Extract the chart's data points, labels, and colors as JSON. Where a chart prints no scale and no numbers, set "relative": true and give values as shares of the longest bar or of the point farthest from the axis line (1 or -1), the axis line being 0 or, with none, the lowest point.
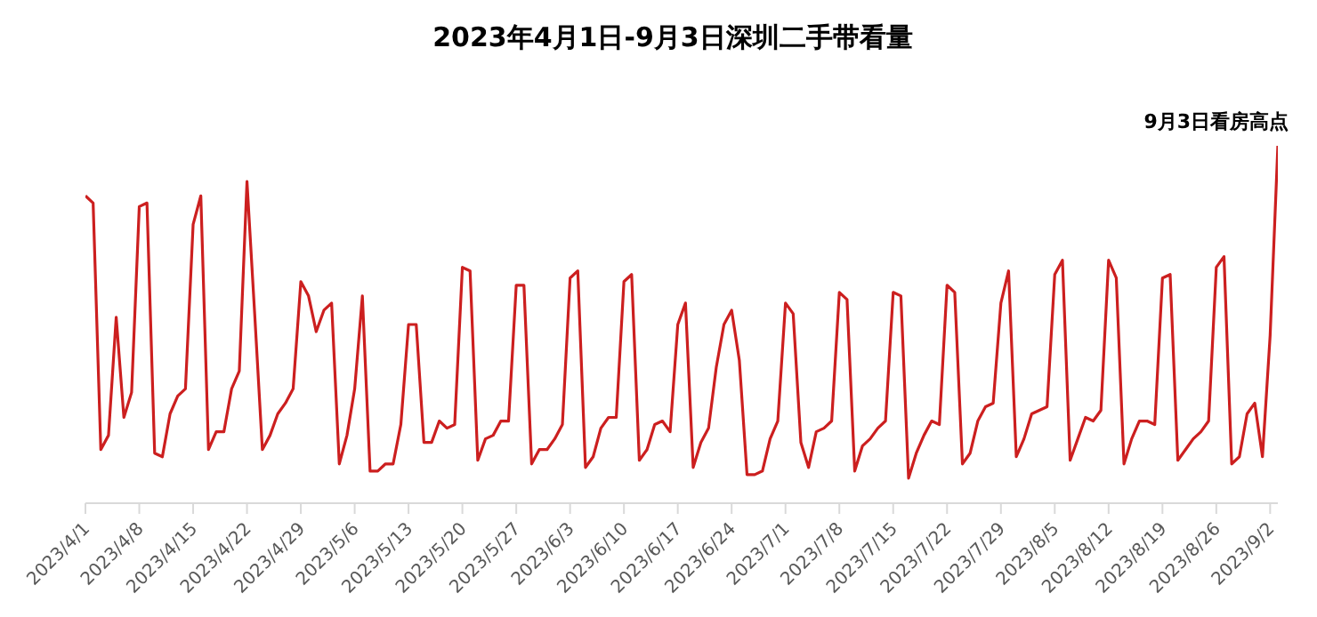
{
  "chart_data": {
    "type": "line",
    "title": "2023年4月1日-9月3日深圳二手带看量",
    "relative": true,
    "categories": [
      "2023/4/1",
      null,
      null,
      null,
      null,
      null,
      null,
      "2023/4/8",
      null,
      null,
      null,
      null,
      null,
      null,
      "2023/4/15",
      null,
      null,
      null,
      null,
      null,
      null,
      "2023/4/22",
      null,
      null,
      null,
      null,
      null,
      null,
      "2023/4/29",
      null,
      null,
      null,
      null,
      null,
      null,
      "2023/5/6",
      null,
      null,
      null,
      null,
      null,
      null,
      "2023/5/13",
      null,
      null,
      null,
      null,
      null,
      null,
      "2023/5/20",
      null,
      null,
      null,
      null,
      null,
      null,
      "2023/5/27",
      null,
      null,
      null,
      null,
      null,
      null,
      "2023/6/3",
      null,
      null,
      null,
      null,
      null,
      null,
      "2023/6/10",
      null,
      null,
      null,
      null,
      null,
      null,
      "2023/6/17",
      null,
      null,
      null,
      null,
      null,
      null,
      "2023/6/24",
      null,
      null,
      null,
      null,
      null,
      null,
      "2023/7/1",
      null,
      null,
      null,
      null,
      null,
      null,
      "2023/7/8",
      null,
      null,
      null,
      null,
      null,
      null,
      "2023/7/15",
      null,
      null,
      null,
      null,
      null,
      null,
      "2023/7/22",
      null,
      null,
      null,
      null,
      null,
      null,
      "2023/7/29",
      null,
      null,
      null,
      null,
      null,
      null,
      "2023/8/5",
      null,
      null,
      null,
      null,
      null,
      null,
      "2023/8/12",
      null,
      null,
      null,
      null,
      null,
      null,
      "2023/8/19",
      null,
      null,
      null,
      null,
      null,
      null,
      "2023/8/26",
      null,
      null,
      null,
      null,
      null,
      null,
      "2023/9/2",
      null
    ],
    "series": [
      {
        "color": "#cc1f1f",
        "values": [
          0.86,
          0.84,
          0.15,
          0.19,
          0.52,
          0.24,
          0.31,
          0.83,
          0.84,
          0.14,
          0.13,
          0.25,
          0.3,
          0.32,
          0.78,
          0.86,
          0.15,
          0.2,
          0.2,
          0.32,
          0.37,
          0.9,
          0.53,
          0.15,
          0.19,
          0.25,
          0.28,
          0.32,
          0.62,
          0.58,
          0.48,
          0.54,
          0.56,
          0.11,
          0.19,
          0.32,
          0.58,
          0.09,
          0.09,
          0.11,
          0.11,
          0.22,
          0.5,
          0.5,
          0.17,
          0.17,
          0.23,
          0.21,
          0.22,
          0.66,
          0.65,
          0.12,
          0.18,
          0.19,
          0.23,
          0.23,
          0.61,
          0.61,
          0.11,
          0.15,
          0.15,
          0.18,
          0.22,
          0.63,
          0.65,
          0.1,
          0.13,
          0.21,
          0.24,
          0.24,
          0.62,
          0.64,
          0.12,
          0.15,
          0.22,
          0.23,
          0.2,
          0.5,
          0.56,
          0.1,
          0.17,
          0.21,
          0.38,
          0.5,
          0.54,
          0.4,
          0.08,
          0.08,
          0.09,
          0.18,
          0.23,
          0.56,
          0.53,
          0.17,
          0.1,
          0.2,
          0.21,
          0.23,
          0.59,
          0.57,
          0.09,
          0.16,
          0.18,
          0.21,
          0.23,
          0.59,
          0.58,
          0.07,
          0.14,
          0.19,
          0.23,
          0.22,
          0.61,
          0.59,
          0.11,
          0.14,
          0.23,
          0.27,
          0.28,
          0.56,
          0.65,
          0.13,
          0.18,
          0.25,
          0.26,
          0.27,
          0.64,
          0.68,
          0.12,
          0.18,
          0.24,
          0.23,
          0.26,
          0.68,
          0.63,
          0.11,
          0.18,
          0.23,
          0.23,
          0.22,
          0.63,
          0.64,
          0.12,
          0.15,
          0.18,
          0.2,
          0.23,
          0.66,
          0.69,
          0.11,
          0.13,
          0.25,
          0.28,
          0.13,
          0.47,
          1
        ]
      }
    ],
    "annotations": [
      "9月3日看房高点"
    ],
    "grid": false,
    "legend": false,
    "marker": "none",
    "line_style": "solid"
  }
}
